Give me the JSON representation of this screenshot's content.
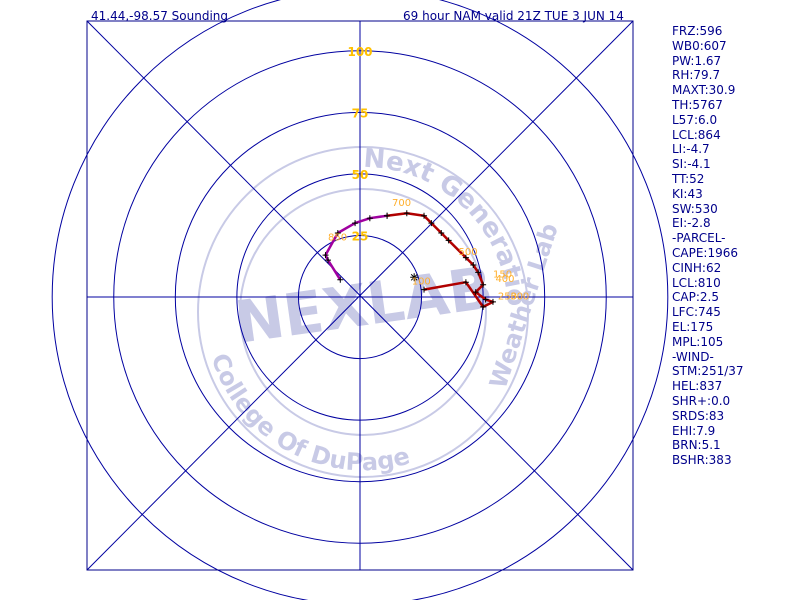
{
  "header": {
    "location": "41.44,-98.57 Sounding",
    "title": "69 hour NAM valid 21Z TUE  3 JUN 14"
  },
  "colors": {
    "frame": "#00008b",
    "ring": "#0000a0",
    "ring_label": "#ffc000",
    "hodo_low": "#a000a0",
    "hodo_high": "#b00000",
    "pressure_label": "#ffb02e",
    "watermark": "#c8cae6"
  },
  "watermark": {
    "arc_top": "Next Generation",
    "arc_bottom": "College Of DuPage",
    "arc_right": "Weather Lab",
    "center": "NEXLAB"
  },
  "parameters": [
    "FRZ:596",
    "WB0:607",
    "PW:1.67",
    "RH:79.7",
    "MAXT:30.9",
    "TH:5767",
    "L57:6.0",
    "LCL:864",
    "LI:-4.7",
    "SI:-4.1",
    "TT:52",
    "KI:43",
    "SW:530",
    "EI:-2.8",
    "-PARCEL-",
    "CAPE:1966",
    "CINH:62",
    "LCL:810",
    "CAP:2.5",
    "LFC:745",
    "EL:175",
    "MPL:105",
    "-WIND-",
    "STM:251/37",
    "HEL:837",
    "SHR+:0.0",
    "SRDS:83",
    "EHI:7.9",
    "BRN:5.1",
    "BSHR:383"
  ],
  "chart_data": {
    "type": "scatter",
    "title": "69 hour NAM valid 21Z TUE  3 JUN 14",
    "subtitle": "41.44,-98.57 Sounding",
    "xlabel": "",
    "ylabel": "",
    "xlim": [
      -75,
      75
    ],
    "ylim": [
      -75,
      75
    ],
    "ring_values": [
      25,
      50,
      75,
      100
    ],
    "ring_labels": [
      "25",
      "50",
      "75",
      "100"
    ],
    "storm_motion": {
      "u": 22,
      "v": 8
    },
    "series": [
      {
        "points": [
          {
            "u": -8,
            "v": 7
          },
          {
            "u": -13,
            "v": 15
          },
          {
            "u": -14,
            "v": 17
          },
          {
            "u": -9,
            "v": 26
          },
          {
            "u": -2,
            "v": 30
          },
          {
            "u": 4,
            "v": 32
          },
          {
            "u": 11,
            "v": 33
          }
        ]
      },
      {
        "points": [
          {
            "u": 11,
            "v": 33
          },
          {
            "u": 19,
            "v": 34
          },
          {
            "u": 26,
            "v": 33
          },
          {
            "u": 29,
            "v": 30
          },
          {
            "u": 33,
            "v": 26
          },
          {
            "u": 36,
            "v": 23
          },
          {
            "u": 43,
            "v": 16
          },
          {
            "u": 46,
            "v": 13
          },
          {
            "u": 48,
            "v": 10
          },
          {
            "u": 50,
            "v": 5
          },
          {
            "u": 47,
            "v": 2
          },
          {
            "u": 51,
            "v": -1
          },
          {
            "u": 54,
            "v": -2
          },
          {
            "u": 50,
            "v": -4
          },
          {
            "u": 43,
            "v": 6
          },
          {
            "u": 26,
            "v": 3
          }
        ]
      }
    ],
    "pressure_labels": [
      {
        "text": "850",
        "u": -13,
        "v": 23
      },
      {
        "text": "700",
        "u": 13,
        "v": 37
      },
      {
        "text": "500",
        "u": 40,
        "v": 17
      },
      {
        "text": "150",
        "u": 54,
        "v": 8
      },
      {
        "text": "400",
        "u": 55,
        "v": 6
      },
      {
        "text": "250",
        "u": 56,
        "v": -1
      },
      {
        "text": "300",
        "u": 61,
        "v": -1
      },
      {
        "text": "100",
        "u": 21,
        "v": 5
      }
    ]
  }
}
